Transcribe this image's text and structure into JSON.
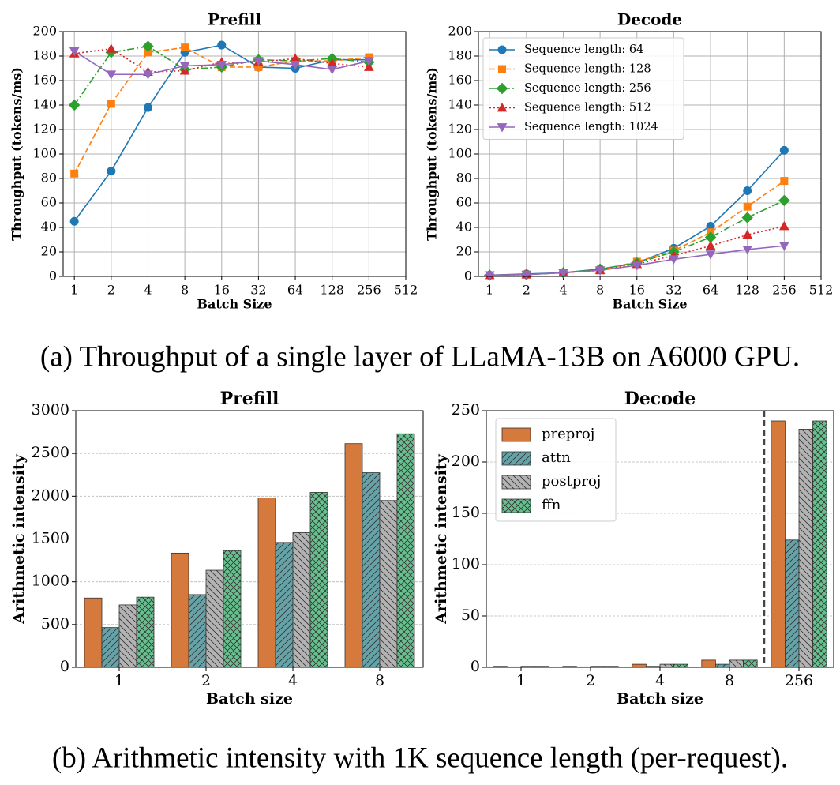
{
  "captions": [
    "(a) Throughput of a single layer of LLaMA-13B on A6000 GPU.",
    "(b) Arithmetic intensity with 1K sequence length (per-request)."
  ],
  "chart_data": [
    {
      "type": "line",
      "title": "Prefill",
      "xlabel": "Batch Size",
      "ylabel": "Throughput (tokens/ms)",
      "x": [
        1,
        2,
        4,
        8,
        16,
        32,
        64,
        128,
        256
      ],
      "xscale": "log",
      "xlim": [
        0.81,
        512
      ],
      "xticks": [
        1,
        2,
        4,
        8,
        16,
        32,
        64,
        128,
        256,
        512
      ],
      "ylim": [
        0,
        200
      ],
      "yticks": [
        0,
        20,
        40,
        60,
        80,
        100,
        120,
        140,
        160,
        180,
        200
      ],
      "grid": "both",
      "series": [
        {
          "color": "#1f77b4",
          "linestyle": "solid",
          "marker": "circle",
          "values": [
            45,
            86,
            138,
            183,
            189,
            171,
            170,
            177,
            177
          ]
        },
        {
          "color": "#ff7f0e",
          "linestyle": "dashed",
          "marker": "square",
          "values": [
            84,
            141,
            183,
            187,
            171,
            171,
            176,
            176,
            179
          ]
        },
        {
          "color": "#2ca02c",
          "linestyle": "dashdot",
          "marker": "diamond",
          "values": [
            140,
            183,
            188,
            169,
            171,
            177,
            176,
            178,
            175
          ]
        },
        {
          "color": "#d62728",
          "linestyle": "dotted",
          "marker": "triangle-up",
          "values": [
            182,
            186,
            167,
            168,
            175,
            175,
            178,
            174,
            171
          ]
        },
        {
          "color": "#9467bd",
          "linestyle": "solid",
          "marker": "triangle-down",
          "values": [
            184,
            165,
            165,
            172,
            173,
            176,
            173,
            169,
            176
          ]
        }
      ]
    },
    {
      "type": "line",
      "title": "Decode",
      "xlabel": "Batch Size",
      "ylabel": "Throughput (tokens/ms)",
      "x": [
        1,
        2,
        4,
        8,
        16,
        32,
        64,
        128,
        256
      ],
      "xscale": "log",
      "xlim": [
        0.81,
        512
      ],
      "xticks": [
        1,
        2,
        4,
        8,
        16,
        32,
        64,
        128,
        256,
        512
      ],
      "ylim": [
        0,
        200
      ],
      "yticks": [
        0,
        20,
        40,
        60,
        80,
        100,
        120,
        140,
        160,
        180,
        200
      ],
      "grid": "both",
      "legend": "upper left",
      "series": [
        {
          "name": "Sequence length: 64",
          "color": "#1f77b4",
          "linestyle": "solid",
          "marker": "circle",
          "values": [
            1,
            2,
            3,
            6,
            11,
            23,
            41,
            70,
            103
          ]
        },
        {
          "name": "Sequence length: 128",
          "color": "#ff7f0e",
          "linestyle": "dashed",
          "marker": "square",
          "values": [
            1,
            1.5,
            3,
            5,
            12,
            21,
            36,
            57,
            78
          ]
        },
        {
          "name": "Sequence length: 256",
          "color": "#2ca02c",
          "linestyle": "dashdot",
          "marker": "diamond",
          "values": [
            1,
            1.5,
            3,
            6,
            11,
            20,
            32,
            48,
            62
          ]
        },
        {
          "name": "Sequence length: 512",
          "color": "#d62728",
          "linestyle": "dotted",
          "marker": "triangle-up",
          "values": [
            1,
            1.5,
            3,
            5,
            10,
            17,
            25,
            34,
            41
          ]
        },
        {
          "name": "Sequence length: 1024",
          "color": "#9467bd",
          "linestyle": "solid",
          "marker": "triangle-down",
          "values": [
            1,
            1.5,
            3,
            5,
            9,
            14,
            18,
            22,
            25
          ]
        }
      ]
    },
    {
      "type": "bar",
      "title": "Prefill",
      "xlabel": "Batch size",
      "ylabel": "Arithmetic intensity",
      "categories": [
        "1",
        "2",
        "4",
        "8"
      ],
      "ylim": [
        0,
        3000
      ],
      "yticks": [
        0,
        500,
        1000,
        1500,
        2000,
        2500,
        3000
      ],
      "grid": "y",
      "series": [
        {
          "color": "#d6793d",
          "hatch": "none",
          "values": [
            810,
            1335,
            1980,
            2615
          ]
        },
        {
          "color": "#66a3a8",
          "hatch": "/",
          "values": [
            465,
            850,
            1460,
            2275
          ]
        },
        {
          "color": "#b3b3b3",
          "hatch": "\\",
          "values": [
            730,
            1135,
            1575,
            1950
          ]
        },
        {
          "color": "#67c18f",
          "hatch": "x",
          "values": [
            820,
            1365,
            2045,
            2730
          ]
        }
      ]
    },
    {
      "type": "bar",
      "title": "Decode",
      "xlabel": "Batch size",
      "ylabel": "Arithmetic intensity",
      "categories": [
        "1",
        "2",
        "4",
        "8",
        "256"
      ],
      "ylim": [
        0,
        250
      ],
      "yticks": [
        0,
        50,
        100,
        150,
        200,
        250
      ],
      "grid": "y",
      "legend": "upper left",
      "series": [
        {
          "name": "preproj",
          "color": "#d6793d",
          "hatch": "none",
          "values": [
            1,
            1,
            3,
            7,
            240
          ]
        },
        {
          "name": "attn",
          "color": "#66a3a8",
          "hatch": "/",
          "values": [
            0.5,
            0.5,
            1,
            3,
            124
          ]
        },
        {
          "name": "postproj",
          "color": "#b3b3b3",
          "hatch": "\\",
          "values": [
            1,
            1,
            3,
            7,
            232
          ]
        },
        {
          "name": "ffn",
          "color": "#67c18f",
          "hatch": "x",
          "values": [
            1,
            1,
            3,
            7,
            240
          ]
        }
      ]
    }
  ]
}
